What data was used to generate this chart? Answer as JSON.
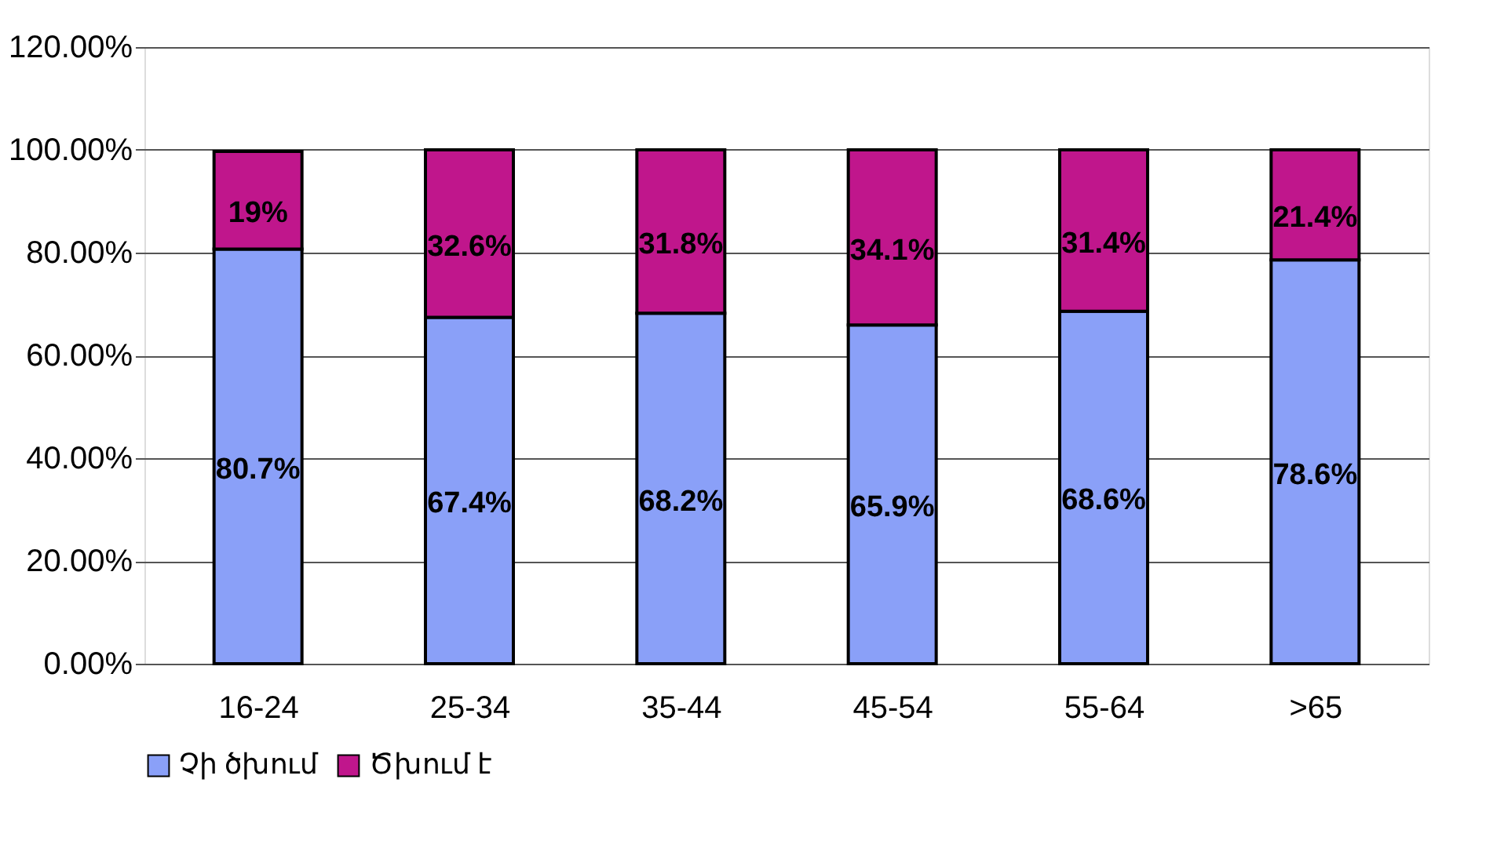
{
  "chart_data": {
    "type": "bar",
    "stacked": true,
    "categories": [
      "16-24",
      "25-34",
      "35-44",
      "45-54",
      "55-64",
      ">65"
    ],
    "series": [
      {
        "name": "Չի ծխում",
        "color": "#8aa0f8",
        "values": [
          80.7,
          67.4,
          68.2,
          65.9,
          68.6,
          78.6
        ],
        "value_labels": [
          "80.7%",
          "67.4%",
          "68.2%",
          "65.9%",
          "68.6%",
          "78.6%"
        ]
      },
      {
        "name": "Ծխում է",
        "color": "#c0168c",
        "values": [
          19,
          32.6,
          31.8,
          34.1,
          31.4,
          21.4
        ],
        "value_labels": [
          "19%",
          "32.6%",
          "31.8%",
          "34.1%",
          "31.4%",
          "21.4%"
        ]
      }
    ],
    "ylim": [
      0,
      120
    ],
    "yticks": [
      {
        "value": 0,
        "label": "0.00%"
      },
      {
        "value": 20,
        "label": "20.00%"
      },
      {
        "value": 40,
        "label": "40.00%"
      },
      {
        "value": 60,
        "label": "60.00%"
      },
      {
        "value": 80,
        "label": "80.00%"
      },
      {
        "value": 100,
        "label": "100.00%"
      },
      {
        "value": 120,
        "label": "120.00%"
      }
    ],
    "grid": "y",
    "legend": "bottom"
  }
}
